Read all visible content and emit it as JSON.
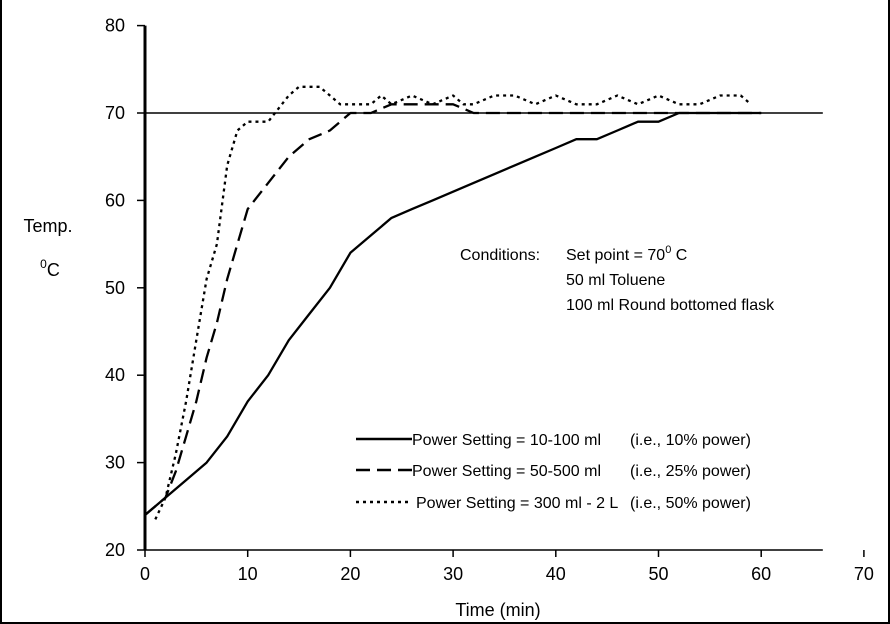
{
  "chart_data": {
    "type": "line",
    "title": "",
    "xlabel": "Time (min)",
    "ylabel_line1": "Temp.",
    "ylabel_line2_sup": "0",
    "ylabel_line2": "C",
    "xlim": [
      0,
      70
    ],
    "ylim": [
      20,
      80
    ],
    "xticks": [
      0,
      10,
      20,
      30,
      40,
      50,
      60,
      70
    ],
    "yticks": [
      20,
      30,
      40,
      50,
      60,
      70,
      80
    ],
    "setpoint": {
      "y": 70,
      "x_range": [
        0,
        66
      ]
    },
    "conditions": {
      "label": "Conditions:",
      "line1_prefix": "Set point = 70",
      "line1_sup": "0",
      "line1_suffix": " C",
      "line2": "50 ml Toluene",
      "line3": "100 ml Round bottomed flask"
    },
    "series": [
      {
        "name": "Power Setting = 10-100 ml",
        "note": "(i.e., 10% power)",
        "style": "solid",
        "x": [
          0,
          2,
          4,
          6,
          8,
          10,
          12,
          14,
          16,
          18,
          20,
          22,
          24,
          26,
          28,
          30,
          32,
          34,
          36,
          38,
          40,
          42,
          44,
          46,
          48,
          50,
          52,
          60
        ],
        "y": [
          24,
          26,
          28,
          30,
          33,
          37,
          40,
          44,
          47,
          50,
          54,
          56,
          58,
          59,
          60,
          61,
          62,
          63,
          64,
          65,
          66,
          67,
          67,
          68,
          69,
          69,
          70,
          70
        ]
      },
      {
        "name": "Power Setting = 50-500 ml",
        "note": "(i.e., 25% power)",
        "style": "dashed",
        "x": [
          0,
          2,
          3,
          4,
          5,
          6,
          7,
          8,
          9,
          10,
          12,
          14,
          16,
          18,
          20,
          22,
          24,
          26,
          28,
          30,
          32,
          34,
          36,
          38,
          40,
          42,
          44,
          46,
          48,
          50,
          52,
          60
        ],
        "y": [
          24,
          26,
          29,
          33,
          37,
          42,
          46,
          51,
          55,
          59,
          62,
          65,
          67,
          68,
          70,
          70,
          71,
          71,
          71,
          71,
          70,
          70,
          70,
          70,
          70,
          70,
          70,
          70,
          70,
          70,
          70,
          70
        ]
      },
      {
        "name": "Power Setting = 300 ml - 2 L",
        "note": "(i.e., 50% power)",
        "style": "dotted",
        "x": [
          1,
          2,
          3,
          4,
          5,
          6,
          7,
          8,
          9,
          10,
          12,
          14,
          15,
          17,
          18,
          19,
          20,
          22,
          23,
          24,
          26,
          28,
          30,
          31,
          32,
          34,
          36,
          38,
          40,
          42,
          44,
          46,
          48,
          50,
          52,
          54,
          56,
          58,
          59
        ],
        "y": [
          23.5,
          26,
          31,
          37,
          44,
          51,
          55,
          64,
          68,
          69,
          69,
          72,
          73,
          73,
          72,
          71,
          71,
          71,
          72,
          71,
          72,
          71,
          72,
          71,
          71,
          72,
          72,
          71,
          72,
          71,
          71,
          72,
          71,
          72,
          71,
          71,
          72,
          72,
          71
        ]
      }
    ]
  }
}
